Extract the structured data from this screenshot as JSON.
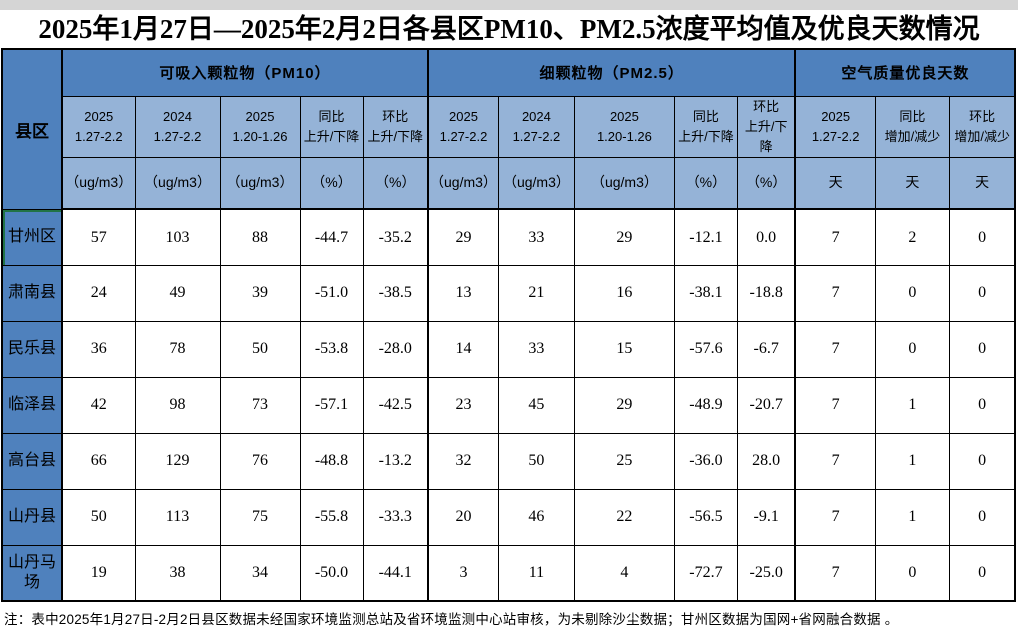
{
  "title": "2025年1月27日—2025年2月2日各县区PM10、PM2.5浓度平均值及优良天数情况",
  "note": "注：表中2025年1月27日-2月2日县区数据未经国家环境监测总站及省环境监测中心站审核，为未剔除沙尘数据；甘州区数据为国网+省网融合数据 。",
  "colors": {
    "header_dark": "#4f81bd",
    "header_light": "#95b3d7",
    "grid": "#000000",
    "selection_green": "#217346",
    "top_strip": "#d5d5d5"
  },
  "table": {
    "corner_label": "县区",
    "sections": [
      {
        "label": "可吸入颗粒物（PM10）",
        "col_count": 5
      },
      {
        "label": "细颗粒物（PM2.5）",
        "col_count": 5
      },
      {
        "label": "空气质量优良天数",
        "col_count": 3
      }
    ],
    "columns": [
      {
        "period": "2025\n1.27-2.2",
        "unit": "（ug/m3）"
      },
      {
        "period": "2024\n1.27-2.2",
        "unit": "（ug/m3）"
      },
      {
        "period": "2025\n1.20-1.26",
        "unit": "（ug/m3）"
      },
      {
        "period": "同比\n上升/下降",
        "unit": "（%）"
      },
      {
        "period": "环比\n上升/下降",
        "unit": "（%）"
      },
      {
        "period": "2025\n1.27-2.2",
        "unit": "（ug/m3）"
      },
      {
        "period": "2024\n1.27-2.2",
        "unit": "（ug/m3）"
      },
      {
        "period": "2025\n1.20-1.26",
        "unit": "（ug/m3）"
      },
      {
        "period": "同比\n上升/下降",
        "unit": "（%）"
      },
      {
        "period": "环比\n上升/下降",
        "unit": "（%）"
      },
      {
        "period": "2025\n1.27-2.2",
        "unit": "天"
      },
      {
        "period": "同比\n增加/减少",
        "unit": "天"
      },
      {
        "period": "环比\n增加/减少",
        "unit": "天"
      }
    ],
    "rows": [
      {
        "name": "甘州区",
        "values": [
          "57",
          "103",
          "88",
          "-44.7",
          "-35.2",
          "29",
          "33",
          "29",
          "-12.1",
          "0.0",
          "7",
          "2",
          "0"
        ]
      },
      {
        "name": "肃南县",
        "values": [
          "24",
          "49",
          "39",
          "-51.0",
          "-38.5",
          "13",
          "21",
          "16",
          "-38.1",
          "-18.8",
          "7",
          "0",
          "0"
        ]
      },
      {
        "name": "民乐县",
        "values": [
          "36",
          "78",
          "50",
          "-53.8",
          "-28.0",
          "14",
          "33",
          "15",
          "-57.6",
          "-6.7",
          "7",
          "0",
          "0"
        ]
      },
      {
        "name": "临泽县",
        "values": [
          "42",
          "98",
          "73",
          "-57.1",
          "-42.5",
          "23",
          "45",
          "29",
          "-48.9",
          "-20.7",
          "7",
          "1",
          "0"
        ]
      },
      {
        "name": "高台县",
        "values": [
          "66",
          "129",
          "76",
          "-48.8",
          "-13.2",
          "32",
          "50",
          "25",
          "-36.0",
          "28.0",
          "7",
          "1",
          "0"
        ]
      },
      {
        "name": "山丹县",
        "values": [
          "50",
          "113",
          "75",
          "-55.8",
          "-33.3",
          "20",
          "46",
          "22",
          "-56.5",
          "-9.1",
          "7",
          "1",
          "0"
        ]
      },
      {
        "name": "山丹马场",
        "values": [
          "19",
          "38",
          "34",
          "-50.0",
          "-44.1",
          "3",
          "11",
          "4",
          "-72.7",
          "-25.0",
          "7",
          "0",
          "0"
        ]
      }
    ]
  }
}
